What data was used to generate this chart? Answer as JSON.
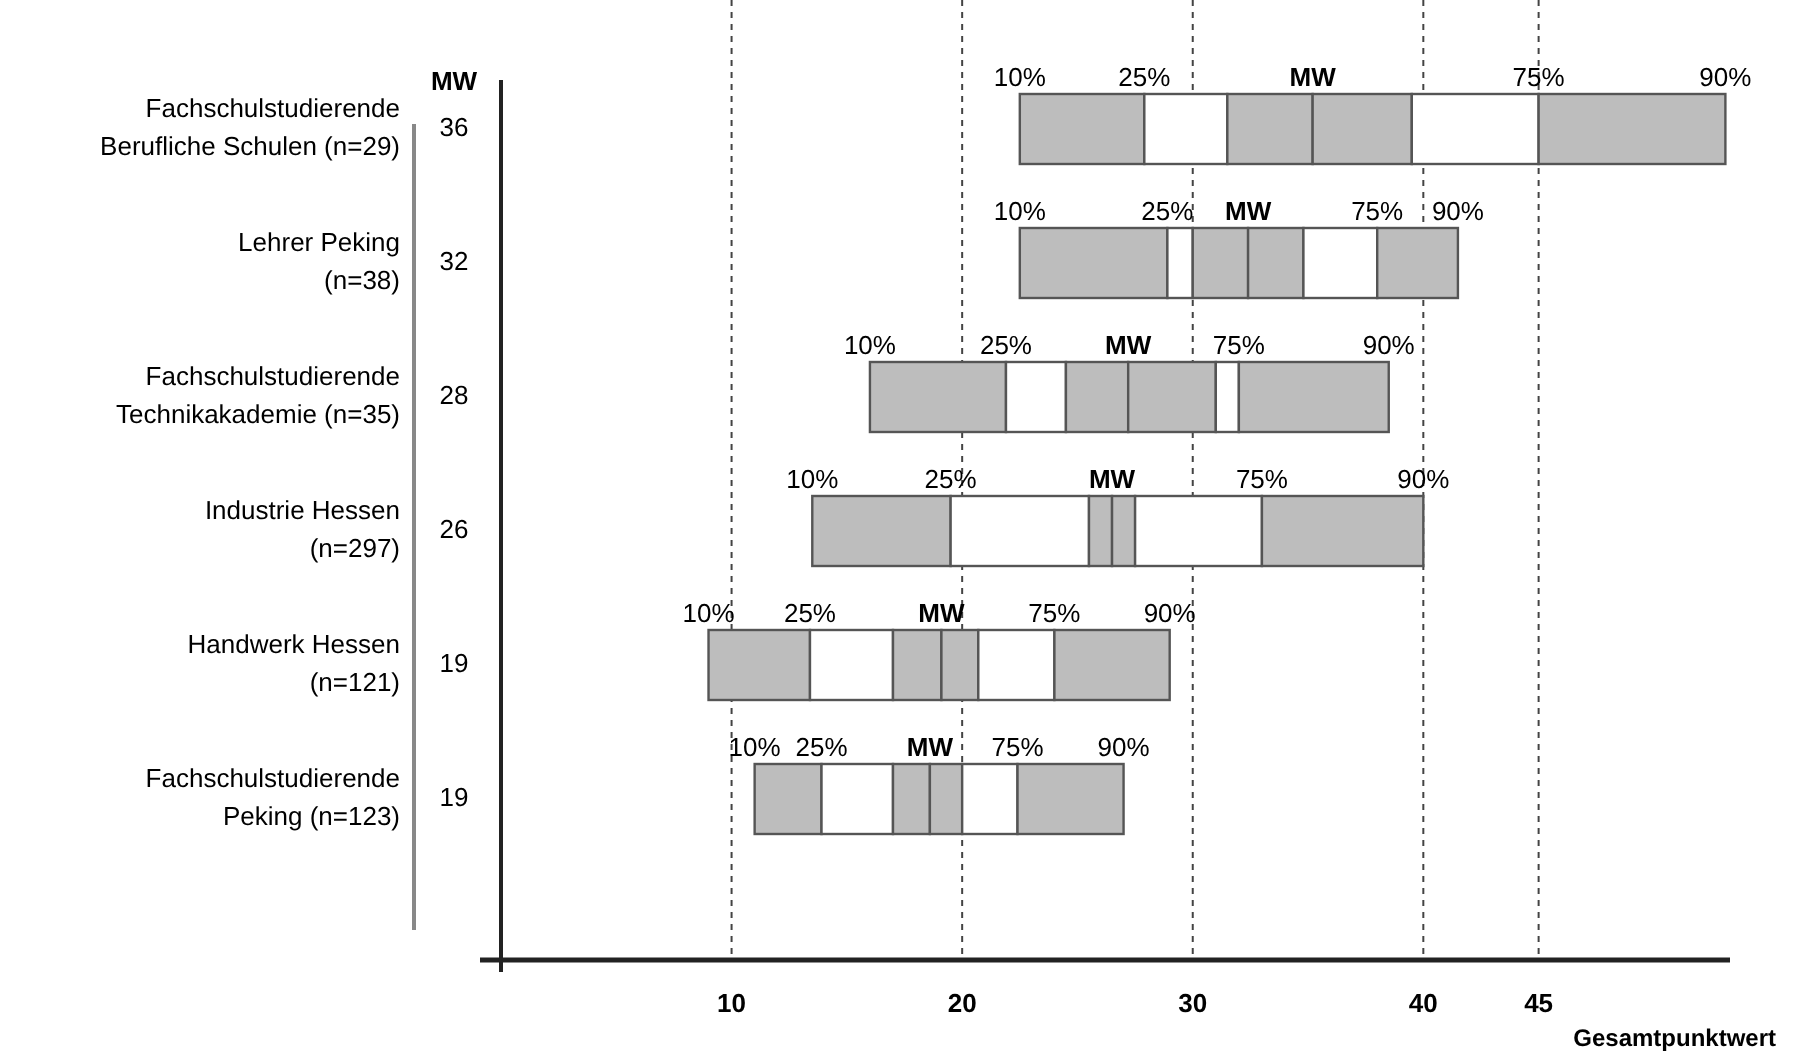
{
  "chart_data": {
    "type": "bar",
    "orientation": "horizontal",
    "xlabel": "Gesamtpunktwert",
    "grid": "x",
    "categories": [
      "Fachschulstudierende\nBerufliche Schulen (n=29)",
      "Lehrer Peking\n(n=38)",
      "Fachschulstudierende\nTechnikakademie (n=35)",
      "Industrie Hessen\n(n=297)",
      "Handwerk Hessen\n(n=121)",
      "Fachschulstudierende\nPeking (n=123)"
    ],
    "series": [
      {
        "color": "#bdbdbd",
        "base": [
          22.5,
          22.5,
          16.0,
          13.5,
          9.0,
          11.0
        ],
        "values": [
          5.4,
          6.4,
          5.9,
          6.0,
          4.4,
          2.9
        ]
      },
      {
        "color": "#ffffff",
        "base": [
          27.9,
          28.9,
          21.9,
          19.5,
          13.4,
          13.9
        ],
        "values": [
          3.6,
          1.1,
          2.6,
          6.0,
          3.6,
          3.1
        ]
      },
      {
        "color": "#bdbdbd",
        "base": [
          31.5,
          30.0,
          24.5,
          25.5,
          17.0,
          17.0
        ],
        "values": [
          3.7,
          2.4,
          2.7,
          1.0,
          2.1,
          1.6
        ]
      },
      {
        "color": "#bdbdbd",
        "base": [
          35.2,
          32.4,
          27.2,
          26.5,
          19.1,
          18.6
        ],
        "values": [
          4.3,
          2.4,
          3.8,
          1.0,
          1.6,
          1.4
        ]
      },
      {
        "color": "#ffffff",
        "base": [
          39.5,
          34.8,
          31.0,
          27.5,
          20.7,
          20.0
        ],
        "values": [
          5.5,
          3.2,
          1.0,
          5.5,
          3.3,
          2.4
        ]
      },
      {
        "color": "#bdbdbd",
        "base": [
          45.0,
          38.0,
          32.0,
          33.0,
          24.0,
          22.4
        ],
        "values": [
          8.1,
          3.5,
          6.5,
          7.0,
          5.0,
          4.6
        ]
      }
    ],
    "xlim": [
      0,
      53.3
    ],
    "xticks": [
      10,
      20,
      30,
      40,
      45
    ],
    "annotations": [
      "MW",
      "36",
      "32",
      "28",
      "26",
      "19",
      "19",
      {
        "text": "10%",
        "x": 22.5,
        "y": "Fachschulstudierende\nBerufliche Schulen (n=29)"
      },
      {
        "text": "25%",
        "x": 27.9,
        "y": "Fachschulstudierende\nBerufliche Schulen (n=29)"
      },
      {
        "text": "MW",
        "x": 35.2,
        "y": "Fachschulstudierende\nBerufliche Schulen (n=29)"
      },
      {
        "text": "75%",
        "x": 45.0,
        "y": "Fachschulstudierende\nBerufliche Schulen (n=29)"
      },
      {
        "text": "90%",
        "x": 53.1,
        "y": "Fachschulstudierende\nBerufliche Schulen (n=29)"
      },
      {
        "text": "10%",
        "x": 22.5,
        "y": "Lehrer Peking\n(n=38)"
      },
      {
        "text": "25%",
        "x": 28.9,
        "y": "Lehrer Peking\n(n=38)"
      },
      {
        "text": "MW",
        "x": 32.4,
        "y": "Lehrer Peking\n(n=38)"
      },
      {
        "text": "75%",
        "x": 38.0,
        "y": "Lehrer Peking\n(n=38)"
      },
      {
        "text": "90%",
        "x": 41.5,
        "y": "Lehrer Peking\n(n=38)"
      },
      {
        "text": "10%",
        "x": 16.0,
        "y": "Fachschulstudierende\nTechnikakademie (n=35)"
      },
      {
        "text": "25%",
        "x": 21.9,
        "y": "Fachschulstudierende\nTechnikakademie (n=35)"
      },
      {
        "text": "MW",
        "x": 27.2,
        "y": "Fachschulstudierende\nTechnikakademie (n=35)"
      },
      {
        "text": "75%",
        "x": 32.0,
        "y": "Fachschulstudierende\nTechnikakademie (n=35)"
      },
      {
        "text": "90%",
        "x": 38.5,
        "y": "Fachschulstudierende\nTechnikakademie (n=35)"
      },
      {
        "text": "10%",
        "x": 13.5,
        "y": "Industrie Hessen\n(n=297)"
      },
      {
        "text": "25%",
        "x": 19.5,
        "y": "Industrie Hessen\n(n=297)"
      },
      {
        "text": "MW",
        "x": 26.5,
        "y": "Industrie Hessen\n(n=297)"
      },
      {
        "text": "75%",
        "x": 33.0,
        "y": "Industrie Hessen\n(n=297)"
      },
      {
        "text": "90%",
        "x": 40.0,
        "y": "Industrie Hessen\n(n=297)"
      },
      {
        "text": "10%",
        "x": 9.0,
        "y": "Handwerk Hessen\n(n=121)"
      },
      {
        "text": "25%",
        "x": 13.4,
        "y": "Handwerk Hessen\n(n=121)"
      },
      {
        "text": "MW",
        "x": 19.1,
        "y": "Handwerk Hessen\n(n=121)"
      },
      {
        "text": "75%",
        "x": 24.0,
        "y": "Handwerk Hessen\n(n=121)"
      },
      {
        "text": "90%",
        "x": 29.0,
        "y": "Handwerk Hessen\n(n=121)"
      },
      {
        "text": "10%",
        "x": 11.0,
        "y": "Fachschulstudierende\nPeking (n=123)"
      },
      {
        "text": "25%",
        "x": 13.9,
        "y": "Fachschulstudierende\nPeking (n=123)"
      },
      {
        "text": "MW",
        "x": 18.6,
        "y": "Fachschulstudierende\nPeking (n=123)"
      },
      {
        "text": "75%",
        "x": 22.4,
        "y": "Fachschulstudierende\nPeking (n=123)"
      },
      {
        "text": "90%",
        "x": 27.0,
        "y": "Fachschulstudierende\nPeking (n=123)"
      }
    ]
  }
}
